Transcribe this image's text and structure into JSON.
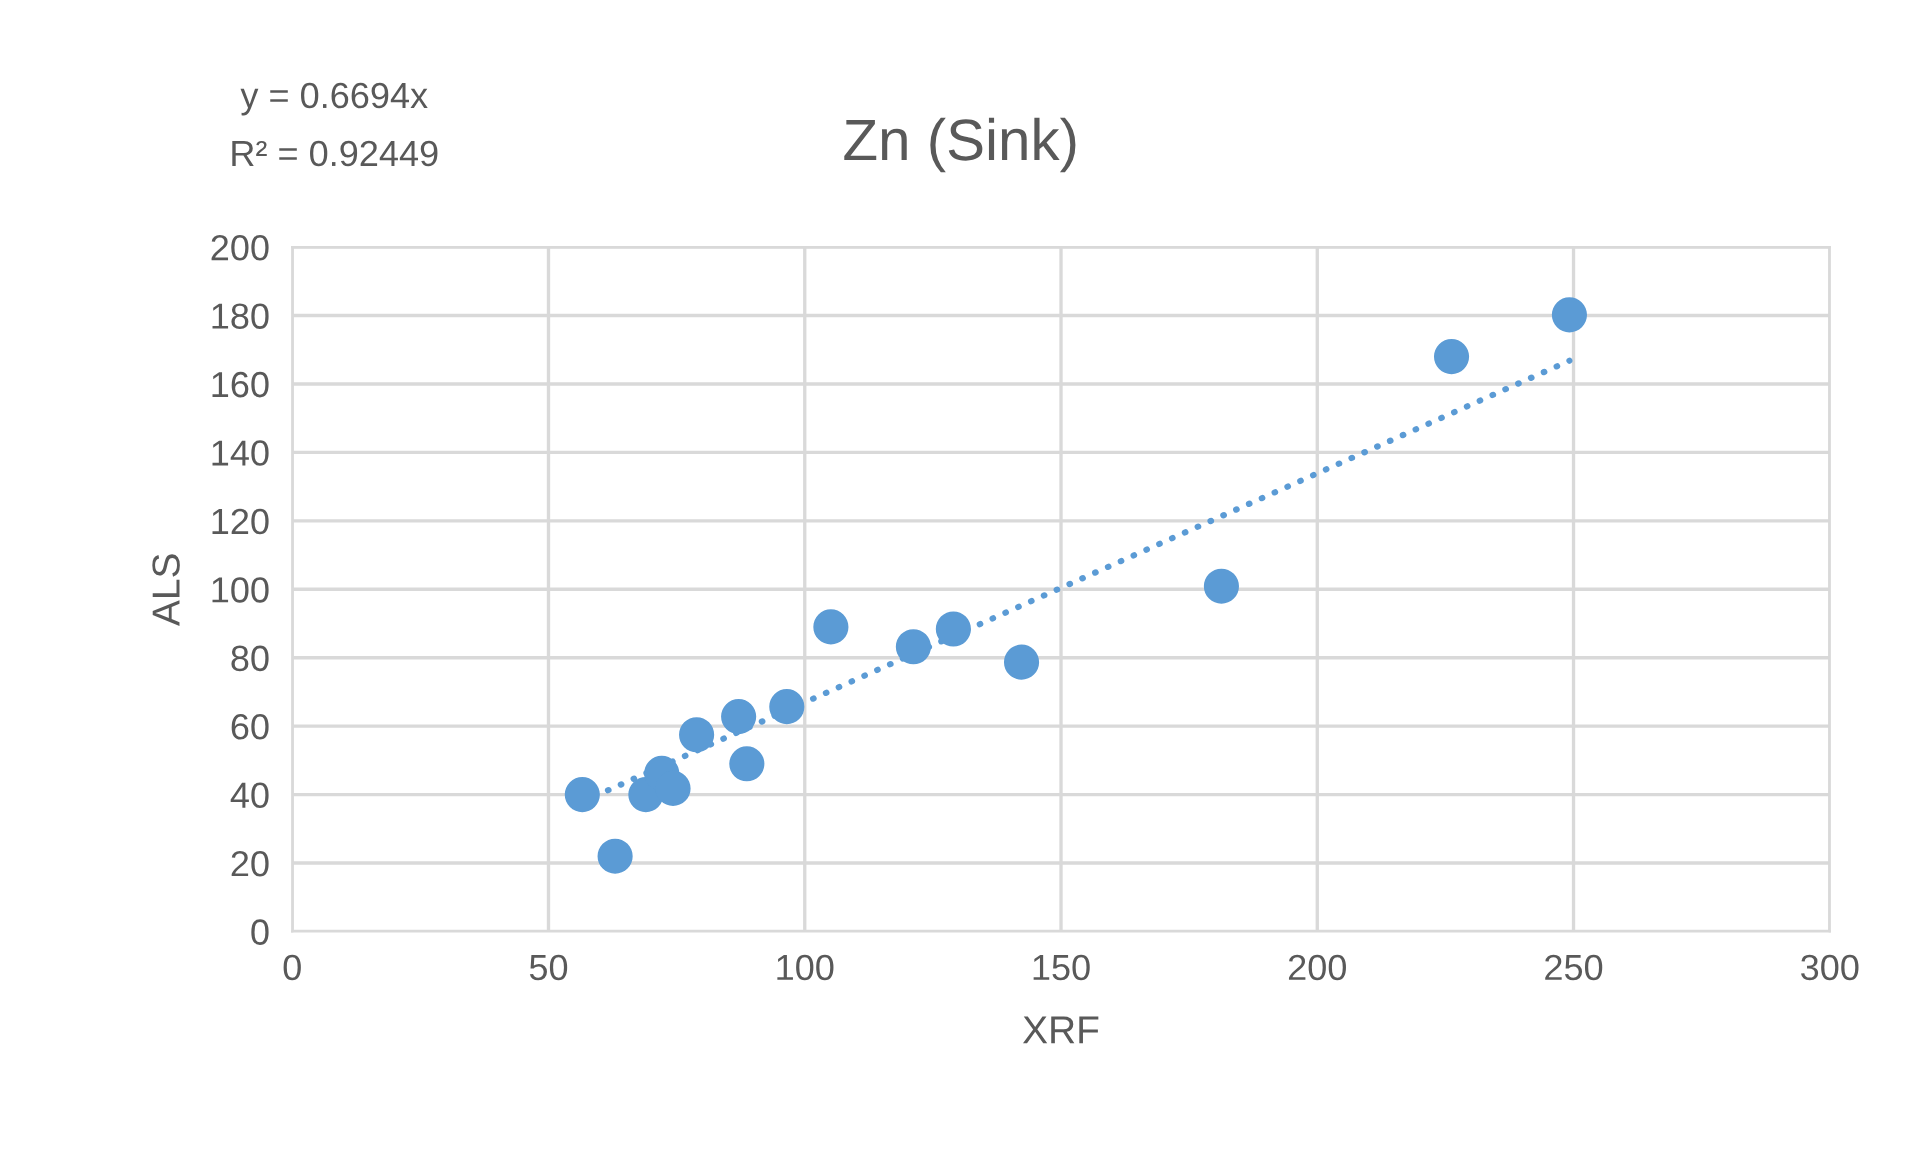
{
  "chart_data": {
    "type": "scatter",
    "title": "Zn (Sink)",
    "xlabel": "XRF",
    "ylabel": "ALS",
    "annotations": [
      "y = 0.6694x",
      "R² = 0.92449"
    ],
    "x": [
      56.6,
      63.0,
      69.0,
      72.1,
      74.3,
      78.9,
      87.1,
      88.7,
      96.5,
      105.1,
      121.2,
      129.0,
      142.3,
      181.3,
      226.2,
      249.2
    ],
    "series": [
      {
        "color": "#5b9bd5",
        "marker": "circle",
        "values": [
          40.0,
          22.0,
          40.0,
          46.2,
          41.8,
          57.5,
          62.8,
          49.0,
          65.7,
          89.0,
          83.2,
          88.4,
          78.7,
          100.9,
          168.0,
          180.2
        ]
      },
      {
        "type": "line",
        "color": "#5b9bd5",
        "line_style": "dotted",
        "x": [
          56.6,
          249.2
        ],
        "values": [
          37.9,
          166.8
        ]
      }
    ],
    "xlim": [
      0,
      300
    ],
    "xticks": [
      0,
      50,
      100,
      150,
      200,
      250,
      300
    ],
    "ylim": [
      0,
      200
    ],
    "yticks": [
      0,
      20,
      40,
      60,
      80,
      100,
      120,
      140,
      160,
      180,
      200
    ],
    "grid": true,
    "legend": false
  }
}
